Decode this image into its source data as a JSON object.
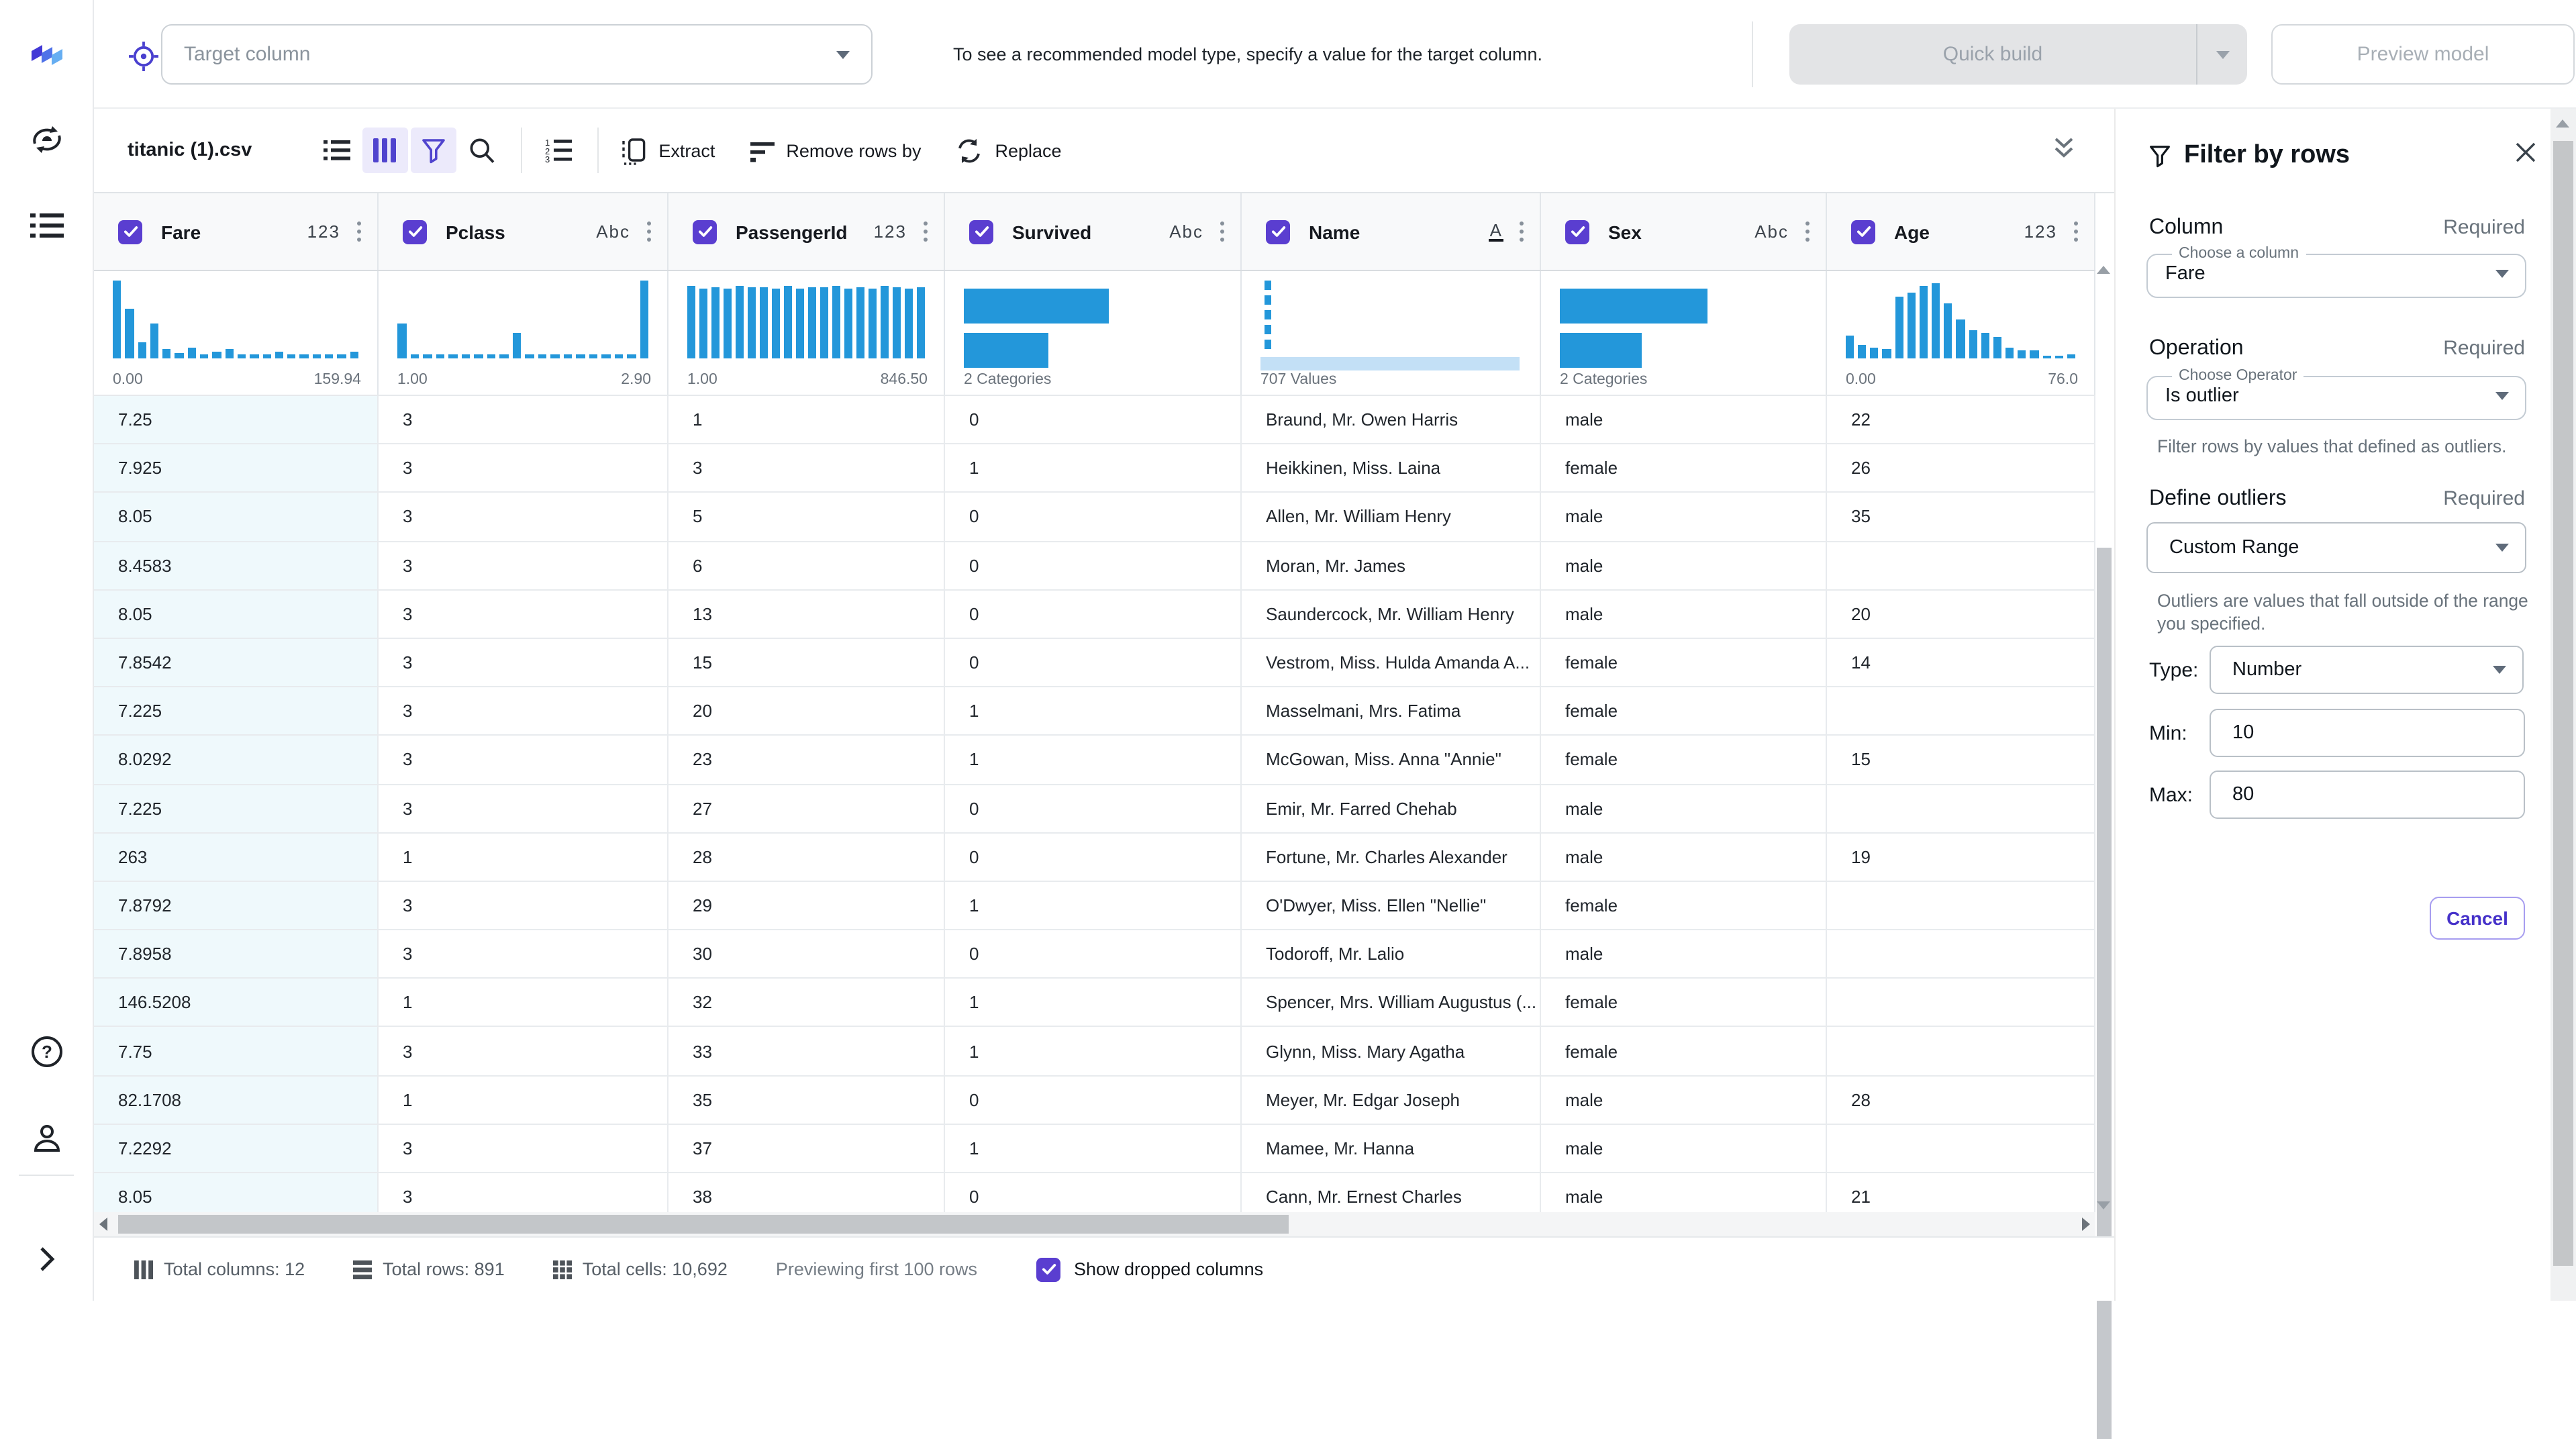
{
  "topbar": {
    "target_placeholder": "Target column",
    "hint": "To see a recommended model type, specify a value for the target column.",
    "quick_build_label": "Quick build",
    "preview_model_label": "Preview model"
  },
  "toolbar": {
    "filename": "titanic (1).csv",
    "extract_label": "Extract",
    "remove_rows_label": "Remove rows by",
    "replace_label": "Replace",
    "icons": [
      "list-view-icon",
      "column-view-icon",
      "filter-funnel-icon",
      "search-icon",
      "numbered-list-icon",
      "extract-icon",
      "remove-rows-icon",
      "replace-icon",
      "collapse-chevrons-icon"
    ]
  },
  "sidebar": {
    "icons": [
      "app-logo",
      "retrain-model-icon",
      "steps-list-icon",
      "help-icon",
      "profile-icon",
      "expand-sidebar-icon"
    ]
  },
  "table": {
    "columns": [
      {
        "name": "Fare",
        "type": "123",
        "hist": {
          "kind": "bars",
          "values": [
            1,
            0.63,
            0.2,
            0.45,
            0.12,
            0.07,
            0.13,
            0.06,
            0.09,
            0.12,
            0.05,
            0.06,
            0.05,
            0.08,
            0.05,
            0.05,
            0.05,
            0.05,
            0.05,
            0.09
          ],
          "left_label": "0.00",
          "right_label": "159.94"
        }
      },
      {
        "name": "Pclass",
        "type": "Abc",
        "hist": {
          "kind": "bars",
          "values": [
            0.45,
            0.05,
            0.05,
            0.05,
            0.05,
            0.05,
            0.05,
            0.05,
            0.05,
            0.33,
            0.05,
            0.05,
            0.05,
            0.05,
            0.05,
            0.05,
            0.05,
            0.05,
            0.05,
            1
          ],
          "left_label": "1.00",
          "right_label": "2.90"
        }
      },
      {
        "name": "PassengerId",
        "type": "123",
        "hist": {
          "kind": "bars",
          "values": [
            0.93,
            0.9,
            0.92,
            0.9,
            0.93,
            0.91,
            0.92,
            0.9,
            0.93,
            0.9,
            0.92,
            0.91,
            0.93,
            0.9,
            0.92,
            0.9,
            0.93,
            0.91,
            0.9,
            0.92
          ],
          "left_label": "1.00",
          "right_label": "846.50"
        }
      },
      {
        "name": "Survived",
        "type": "Abc",
        "hist": {
          "kind": "categories",
          "bar_widths_pct": [
            56,
            33
          ],
          "label": "2 Categories"
        }
      },
      {
        "name": "Name",
        "type": "A",
        "hist": {
          "kind": "unique",
          "label": "707 Values"
        }
      },
      {
        "name": "Sex",
        "type": "Abc",
        "hist": {
          "kind": "categories",
          "bar_widths_pct": [
            60,
            33
          ],
          "label": "2 Categories"
        }
      },
      {
        "name": "Age",
        "type": "123",
        "hist": {
          "kind": "bars",
          "values": [
            0.3,
            0.17,
            0.14,
            0.12,
            0.8,
            0.84,
            0.93,
            0.96,
            0.7,
            0.5,
            0.37,
            0.32,
            0.27,
            0.13,
            0.1,
            0.1,
            0.04,
            0.04,
            0.05
          ],
          "left_label": "0.00",
          "right_label": "76.0"
        }
      }
    ],
    "rows": [
      [
        "7.25",
        "3",
        "1",
        "0",
        "Braund, Mr. Owen Harris",
        "male",
        "22"
      ],
      [
        "7.925",
        "3",
        "3",
        "1",
        "Heikkinen, Miss. Laina",
        "female",
        "26"
      ],
      [
        "8.05",
        "3",
        "5",
        "0",
        "Allen, Mr. William Henry",
        "male",
        "35"
      ],
      [
        "8.4583",
        "3",
        "6",
        "0",
        "Moran, Mr. James",
        "male",
        ""
      ],
      [
        "8.05",
        "3",
        "13",
        "0",
        "Saundercock, Mr. William Henry",
        "male",
        "20"
      ],
      [
        "7.8542",
        "3",
        "15",
        "0",
        "Vestrom, Miss. Hulda Amanda A...",
        "female",
        "14"
      ],
      [
        "7.225",
        "3",
        "20",
        "1",
        "Masselmani, Mrs. Fatima",
        "female",
        ""
      ],
      [
        "8.0292",
        "3",
        "23",
        "1",
        "McGowan, Miss. Anna \"Annie\"",
        "female",
        "15"
      ],
      [
        "7.225",
        "3",
        "27",
        "0",
        "Emir, Mr. Farred Chehab",
        "male",
        ""
      ],
      [
        "263",
        "1",
        "28",
        "0",
        "Fortune, Mr. Charles Alexander",
        "male",
        "19"
      ],
      [
        "7.8792",
        "3",
        "29",
        "1",
        "O'Dwyer, Miss. Ellen \"Nellie\"",
        "female",
        ""
      ],
      [
        "7.8958",
        "3",
        "30",
        "0",
        "Todoroff, Mr. Lalio",
        "male",
        ""
      ],
      [
        "146.5208",
        "1",
        "32",
        "1",
        "Spencer, Mrs. William Augustus (...",
        "female",
        ""
      ],
      [
        "7.75",
        "3",
        "33",
        "1",
        "Glynn, Miss. Mary Agatha",
        "female",
        ""
      ],
      [
        "82.1708",
        "1",
        "35",
        "0",
        "Meyer, Mr. Edgar Joseph",
        "male",
        "28"
      ],
      [
        "7.2292",
        "3",
        "37",
        "1",
        "Mamee, Mr. Hanna",
        "male",
        ""
      ],
      [
        "8.05",
        "3",
        "38",
        "0",
        "Cann, Mr. Ernest Charles",
        "male",
        "21"
      ]
    ]
  },
  "panel": {
    "title": "Filter by rows",
    "column_label": "Column",
    "column_required": "Required",
    "column_legend": "Choose a column",
    "column_value": "Fare",
    "operation_label": "Operation",
    "operation_required": "Required",
    "operator_legend": "Choose Operator",
    "operator_value": "Is outlier",
    "operator_help": "Filter rows by values that defined as outliers.",
    "define_label": "Define outliers",
    "define_required": "Required",
    "define_value": "Custom Range",
    "define_help": "Outliers are values that fall outside of the range you specified.",
    "type_label": "Type:",
    "type_value": "Number",
    "min_label": "Min:",
    "min_value": "10",
    "max_label": "Max:",
    "max_value": "80",
    "cancel_label": "Cancel"
  },
  "statusbar": {
    "total_columns": "Total columns: 12",
    "total_rows": "Total rows: 891",
    "total_cells": "Total cells: 10,692",
    "previewing": "Previewing first 100 rows",
    "show_dropped": "Show dropped columns"
  },
  "colors": {
    "accent_purple": "#5a3ed0",
    "toolbar_active_bg": "#eceafb",
    "histogram_blue": "#2397da",
    "histogram_light_blue": "#c3e0f6",
    "selected_column_bg": "#eff9fc"
  }
}
